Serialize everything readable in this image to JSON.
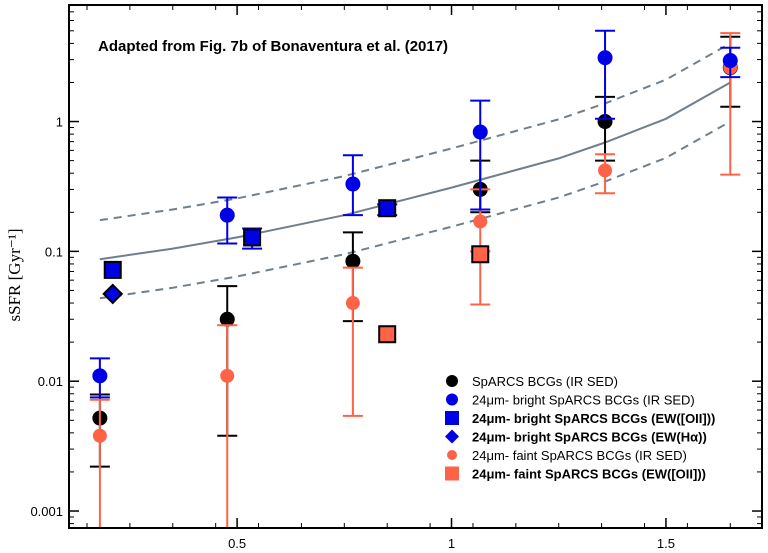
{
  "chart_data": {
    "type": "scatter",
    "annotation": "Adapted from Fig. 7b of Bonaventura et al. (2017)",
    "xlabel": "",
    "ylabel": "sSFR [Gyr⁻¹]",
    "xlim": [
      0.108,
      1.724
    ],
    "ylim": [
      0.00074,
      7.9
    ],
    "yscale": "log",
    "x_ticks": [
      0.5,
      1,
      1.5
    ],
    "x_tick_labels": [
      "0.5",
      "1",
      "1.5"
    ],
    "y_ticks": [
      0.001,
      0.01,
      0.1,
      1
    ],
    "y_tick_labels": [
      "0.001",
      "0.01",
      "0.1",
      "1"
    ],
    "grid": false,
    "legend_position": "bottom-right",
    "colors": {
      "black": "#000000",
      "blue": "#0000e6",
      "red": "#ff6347",
      "curve": "#6f7f8c"
    },
    "series": [
      {
        "name": "SpARCS BCGs (IR SED)",
        "marker": "circle",
        "color": "#000000",
        "bold": false,
        "points": [
          {
            "x": 0.18,
            "y": 0.0052,
            "hi": 0.0079,
            "lo": 0.0022
          },
          {
            "x": 0.477,
            "y": 0.03,
            "hi": 0.054,
            "lo": 0.0038
          },
          {
            "x": 0.77,
            "y": 0.084,
            "hi": 0.14,
            "lo": 0.029
          },
          {
            "x": 1.067,
            "y": 0.3,
            "hi": 0.5,
            "lo": 0.2
          },
          {
            "x": 1.358,
            "y": 1.0,
            "hi": 1.55,
            "lo": 0.5
          },
          {
            "x": 1.65,
            "y": 2.6,
            "hi": 4.5,
            "lo": 1.3
          }
        ]
      },
      {
        "name": "24μm- bright SpARCS BCGs (IR SED)",
        "marker": "circle",
        "color": "#0000e6",
        "bold": false,
        "points": [
          {
            "x": 0.18,
            "y": 0.011,
            "hi": 0.015,
            "lo": 0.0075
          },
          {
            "x": 0.477,
            "y": 0.19,
            "hi": 0.26,
            "lo": 0.115
          },
          {
            "x": 0.77,
            "y": 0.33,
            "hi": 0.55,
            "lo": 0.19
          },
          {
            "x": 1.067,
            "y": 0.83,
            "hi": 1.45,
            "lo": 0.21
          },
          {
            "x": 1.358,
            "y": 3.1,
            "hi": 5.0,
            "lo": 1.05
          },
          {
            "x": 1.65,
            "y": 2.95,
            "hi": 3.7,
            "lo": 2.2
          }
        ]
      },
      {
        "name": "24μm- bright SpARCS BCGs (EW([OII]))",
        "marker": "square",
        "color": "#0000e6",
        "bold": true,
        "points": [
          {
            "x": 0.21,
            "y": 0.072
          },
          {
            "x": 0.535,
            "y": 0.128,
            "hi": 0.15,
            "lo": 0.105
          },
          {
            "x": 0.85,
            "y": 0.215,
            "hi": 0.23,
            "lo": 0.19
          }
        ]
      },
      {
        "name": "24μm- bright SpARCS BCGs (EW(Hα))",
        "marker": "diamond",
        "color": "#0000e6",
        "bold": true,
        "points": [
          {
            "x": 0.21,
            "y": 0.047
          }
        ]
      },
      {
        "name": "24μm- faint SpARCS BCGs (IR SED)",
        "marker": "circle",
        "color": "#ff6347",
        "bold": false,
        "points": [
          {
            "x": 0.18,
            "y": 0.0038,
            "hi": 0.0072,
            "lo": 0.0007
          },
          {
            "x": 0.477,
            "y": 0.011,
            "hi": 0.027,
            "lo": 0.0007
          },
          {
            "x": 0.77,
            "y": 0.04,
            "hi": 0.075,
            "lo": 0.0054
          },
          {
            "x": 1.067,
            "y": 0.17,
            "hi": 0.3,
            "lo": 0.1
          },
          {
            "x": 1.358,
            "y": 0.42,
            "hi": 0.56,
            "lo": 0.28
          },
          {
            "x": 1.65,
            "y": 2.6,
            "hi": 4.8,
            "lo": 0.39
          }
        ]
      },
      {
        "name": "24μm- faint SpARCS BCGs (EW([OII]))",
        "marker": "square",
        "color": "#ff6347",
        "bold": true,
        "points": [
          {
            "x": 0.85,
            "y": 0.023
          },
          {
            "x": 1.067,
            "y": 0.095,
            "hi": 0.1,
            "lo": 0.039
          }
        ]
      }
    ],
    "main_sequence": {
      "x": [
        0.18,
        0.35,
        0.5,
        0.75,
        1.0,
        1.25,
        1.358,
        1.5,
        1.65
      ],
      "y": [
        0.087,
        0.105,
        0.128,
        0.19,
        0.31,
        0.52,
        0.69,
        1.05,
        2.0
      ],
      "band_factor": 2
    }
  }
}
